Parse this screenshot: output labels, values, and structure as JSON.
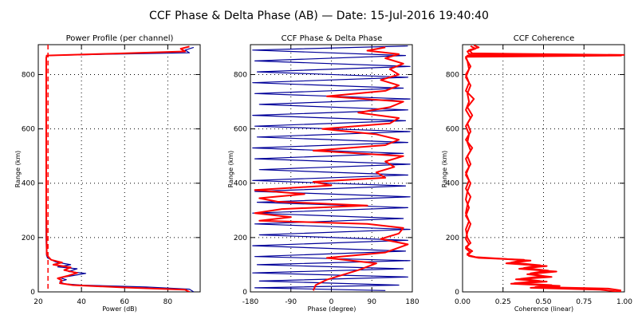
{
  "figure": {
    "title": "CCF Phase & Delta Phase (AB) — Date: 15-Jul-2016 19:40:40"
  },
  "colors": {
    "channel_a": "#000099",
    "channel_b": "#ff0000",
    "grid": "#000000",
    "background": "#ffffff"
  },
  "chart_data": [
    {
      "type": "line",
      "title": "Power Profile (per channel)",
      "xlabel": "Power (dB)",
      "ylabel": "Range (km)",
      "xlim": [
        20,
        95
      ],
      "ylim": [
        0,
        910
      ],
      "xticks": [
        20,
        40,
        60,
        80
      ],
      "yticks": [
        0,
        200,
        400,
        600,
        800
      ],
      "grid": "dotted",
      "reference_line": {
        "x": 24.5,
        "style": "dashed",
        "color": "#ff0000"
      },
      "series": [
        {
          "color": "#000099",
          "points": [
            [
              92,
              0
            ],
            [
              90,
              10
            ],
            [
              70,
              18
            ],
            [
              40,
              25
            ],
            [
              32,
              30
            ],
            [
              30,
              38
            ],
            [
              33,
              45
            ],
            [
              30,
              52
            ],
            [
              36,
              60
            ],
            [
              42,
              68
            ],
            [
              34,
              75
            ],
            [
              38,
              85
            ],
            [
              29,
              92
            ],
            [
              35,
              100
            ],
            [
              28,
              110
            ],
            [
              24.3,
              125
            ],
            [
              23.8,
              135
            ],
            [
              23.6,
              200
            ],
            [
              23.6,
              400
            ],
            [
              23.6,
              600
            ],
            [
              23.6,
              860
            ],
            [
              23.8,
              870
            ],
            [
              60,
              876
            ],
            [
              90,
              880
            ],
            [
              88,
              890
            ],
            [
              92,
              900
            ]
          ]
        },
        {
          "color": "#ff0000",
          "points": [
            [
              90,
              0
            ],
            [
              88,
              8
            ],
            [
              60,
              16
            ],
            [
              36,
              25
            ],
            [
              30,
              32
            ],
            [
              31,
              42
            ],
            [
              29,
              50
            ],
            [
              34,
              60
            ],
            [
              38,
              70
            ],
            [
              32,
              80
            ],
            [
              35,
              90
            ],
            [
              27,
              100
            ],
            [
              31,
              108
            ],
            [
              26,
              118
            ],
            [
              24.3,
              132
            ],
            [
              23.9,
              140
            ],
            [
              23.7,
              300
            ],
            [
              23.7,
              500
            ],
            [
              23.7,
              700
            ],
            [
              23.7,
              860
            ],
            [
              23.9,
              870
            ],
            [
              55,
              877
            ],
            [
              88,
              885
            ],
            [
              86,
              895
            ],
            [
              90,
              903
            ]
          ]
        }
      ]
    },
    {
      "type": "line",
      "title": "CCF Phase & Delta Phase",
      "xlabel": "Phase (degree)",
      "ylabel": "Range (km)",
      "xlim": [
        -180,
        180
      ],
      "ylim": [
        0,
        910
      ],
      "xticks": [
        -180,
        -90,
        0,
        90,
        180
      ],
      "yticks": [
        0,
        200,
        400,
        600,
        800
      ],
      "grid": "dotted",
      "series": [
        {
          "color": "#000099",
          "points": [
            [
              120,
              5
            ],
            [
              -170,
              15
            ],
            [
              150,
              25
            ],
            [
              -160,
              40
            ],
            [
              170,
              55
            ],
            [
              -175,
              70
            ],
            [
              160,
              85
            ],
            [
              -165,
              100
            ],
            [
              175,
              115
            ],
            [
              -170,
              130
            ],
            [
              165,
              150
            ],
            [
              -175,
              170
            ],
            [
              170,
              190
            ],
            [
              -160,
              210
            ],
            [
              175,
              230
            ],
            [
              -170,
              250
            ],
            [
              160,
              270
            ],
            [
              -175,
              290
            ],
            [
              170,
              310
            ],
            [
              -165,
              330
            ],
            [
              175,
              350
            ],
            [
              -170,
              370
            ],
            [
              165,
              390
            ],
            [
              -175,
              410
            ],
            [
              170,
              430
            ],
            [
              -160,
              450
            ],
            [
              175,
              470
            ],
            [
              -170,
              490
            ],
            [
              160,
              510
            ],
            [
              -175,
              530
            ],
            [
              170,
              550
            ],
            [
              -165,
              570
            ],
            [
              175,
              590
            ],
            [
              -170,
              610
            ],
            [
              165,
              630
            ],
            [
              -175,
              650
            ],
            [
              170,
              670
            ],
            [
              -160,
              690
            ],
            [
              175,
              710
            ],
            [
              -170,
              730
            ],
            [
              160,
              750
            ],
            [
              -175,
              770
            ],
            [
              170,
              790
            ],
            [
              -165,
              810
            ],
            [
              175,
              830
            ],
            [
              -170,
              850
            ],
            [
              165,
              870
            ],
            [
              -175,
              890
            ],
            [
              170,
              905
            ]
          ]
        },
        {
          "color": "#ff0000",
          "points": [
            [
              -40,
              5
            ],
            [
              -35,
              25
            ],
            [
              -10,
              45
            ],
            [
              60,
              80
            ],
            [
              100,
              105
            ],
            [
              -10,
              125
            ],
            [
              120,
              145
            ],
            [
              170,
              175
            ],
            [
              110,
              195
            ],
            [
              150,
              215
            ],
            [
              160,
              235
            ],
            [
              80,
              250
            ],
            [
              -160,
              262
            ],
            [
              -90,
              275
            ],
            [
              -170,
              290
            ],
            [
              -110,
              305
            ],
            [
              80,
              318
            ],
            [
              -120,
              332
            ],
            [
              -160,
              345
            ],
            [
              -60,
              360
            ],
            [
              -170,
              375
            ],
            [
              0,
              392
            ],
            [
              -40,
              405
            ],
            [
              120,
              420
            ],
            [
              100,
              440
            ],
            [
              140,
              460
            ],
            [
              120,
              480
            ],
            [
              160,
              500
            ],
            [
              -40,
              520
            ],
            [
              120,
              540
            ],
            [
              150,
              560
            ],
            [
              100,
              580
            ],
            [
              -20,
              600
            ],
            [
              130,
              620
            ],
            [
              150,
              640
            ],
            [
              60,
              660
            ],
            [
              130,
              680
            ],
            [
              160,
              700
            ],
            [
              -10,
              720
            ],
            [
              120,
              740
            ],
            [
              150,
              760
            ],
            [
              110,
              780
            ],
            [
              150,
              800
            ],
            [
              130,
              820
            ],
            [
              160,
              840
            ],
            [
              120,
              860
            ],
            [
              150,
              875
            ],
            [
              80,
              888
            ],
            [
              120,
              900
            ]
          ]
        }
      ]
    },
    {
      "type": "line",
      "title": "CCF Coherence",
      "xlabel": "Coherence (linear)",
      "ylabel": "Range (km)",
      "xlim": [
        0.0,
        1.0
      ],
      "ylim": [
        0,
        910
      ],
      "xticks": [
        "0.00",
        "0.25",
        "0.50",
        "0.75",
        "1.00"
      ],
      "yticks": [
        0,
        200,
        400,
        600,
        800
      ],
      "grid": "dotted",
      "series": [
        {
          "color": "#ff0000",
          "points": [
            [
              0.98,
              5
            ],
            [
              0.9,
              12
            ],
            [
              0.45,
              18
            ],
            [
              0.55,
              25
            ],
            [
              0.32,
              32
            ],
            [
              0.48,
              40
            ],
            [
              0.36,
              48
            ],
            [
              0.5,
              58
            ],
            [
              0.42,
              68
            ],
            [
              0.53,
              78
            ],
            [
              0.38,
              88
            ],
            [
              0.48,
              98
            ],
            [
              0.3,
              108
            ],
            [
              0.38,
              118
            ],
            [
              0.1,
              125
            ],
            [
              0.04,
              132
            ],
            [
              0.03,
              140
            ],
            [
              0.06,
              150
            ],
            [
              0.02,
              165
            ],
            [
              0.05,
              180
            ],
            [
              0.03,
              200
            ],
            [
              0.02,
              230
            ],
            [
              0.04,
              260
            ],
            [
              0.02,
              290
            ],
            [
              0.03,
              320
            ],
            [
              0.05,
              350
            ],
            [
              0.02,
              380
            ],
            [
              0.04,
              410
            ],
            [
              0.02,
              440
            ],
            [
              0.05,
              470
            ],
            [
              0.03,
              500
            ],
            [
              0.06,
              530
            ],
            [
              0.02,
              560
            ],
            [
              0.05,
              590
            ],
            [
              0.03,
              620
            ],
            [
              0.06,
              650
            ],
            [
              0.03,
              680
            ],
            [
              0.07,
              710
            ],
            [
              0.02,
              740
            ],
            [
              0.04,
              770
            ],
            [
              0.02,
              800
            ],
            [
              0.05,
              830
            ],
            [
              0.02,
              860
            ],
            [
              0.03,
              870
            ],
            [
              1.0,
              872
            ],
            [
              0.06,
              878
            ],
            [
              0.04,
              890
            ],
            [
              0.1,
              900
            ],
            [
              0.07,
              908
            ]
          ]
        },
        {
          "color": "#ff0000",
          "points": [
            [
              0.98,
              0
            ],
            [
              0.85,
              8
            ],
            [
              0.42,
              15
            ],
            [
              0.6,
              22
            ],
            [
              0.3,
              30
            ],
            [
              0.52,
              38
            ],
            [
              0.33,
              46
            ],
            [
              0.55,
              55
            ],
            [
              0.4,
              65
            ],
            [
              0.58,
              75
            ],
            [
              0.35,
              85
            ],
            [
              0.52,
              95
            ],
            [
              0.27,
              105
            ],
            [
              0.42,
              115
            ],
            [
              0.08,
              128
            ],
            [
              0.03,
              136
            ],
            [
              0.05,
              145
            ],
            [
              0.02,
              160
            ],
            [
              0.04,
              175
            ],
            [
              0.02,
              195
            ],
            [
              0.03,
              220
            ],
            [
              0.05,
              250
            ],
            [
              0.02,
              280
            ],
            [
              0.04,
              310
            ],
            [
              0.02,
              340
            ],
            [
              0.03,
              370
            ],
            [
              0.05,
              400
            ],
            [
              0.02,
              430
            ],
            [
              0.04,
              460
            ],
            [
              0.02,
              490
            ],
            [
              0.05,
              520
            ],
            [
              0.03,
              550
            ],
            [
              0.04,
              580
            ],
            [
              0.02,
              610
            ],
            [
              0.05,
              640
            ],
            [
              0.02,
              670
            ],
            [
              0.04,
              700
            ],
            [
              0.03,
              730
            ],
            [
              0.05,
              760
            ],
            [
              0.02,
              790
            ],
            [
              0.04,
              820
            ],
            [
              0.03,
              850
            ],
            [
              0.02,
              865
            ],
            [
              0.98,
              870
            ],
            [
              0.04,
              876
            ],
            [
              0.03,
              885
            ],
            [
              0.08,
              895
            ],
            [
              0.05,
              905
            ]
          ]
        }
      ]
    }
  ]
}
